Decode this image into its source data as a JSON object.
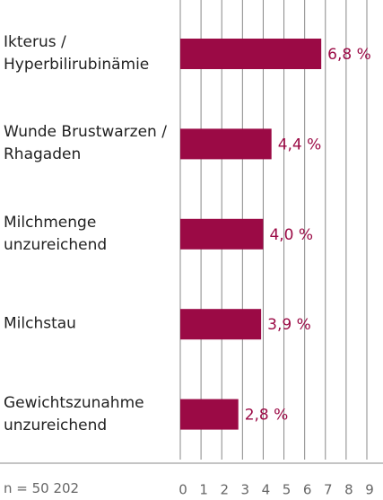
{
  "chart_data": {
    "type": "bar",
    "orientation": "horizontal",
    "categories": [
      "Ikterus /\nHyperbilirubinämie",
      "Wunde Brustwarzen /\nRhagaden",
      "Milchmenge\nunzureichend",
      "Milchstau",
      "Gewichtszunahme\nunzureichend"
    ],
    "values": [
      6.8,
      4.4,
      4.0,
      3.9,
      2.8
    ],
    "value_labels": [
      "6,8 %",
      "4,4 %",
      "4,0 %",
      "3,9 %",
      "2,8 %"
    ],
    "color": "#9b0a45",
    "xlim": [
      0,
      9
    ],
    "xticks": [
      0,
      1,
      2,
      3,
      4,
      5,
      6,
      7,
      8,
      9
    ],
    "grid": true,
    "annotation": "n = 50 202"
  }
}
